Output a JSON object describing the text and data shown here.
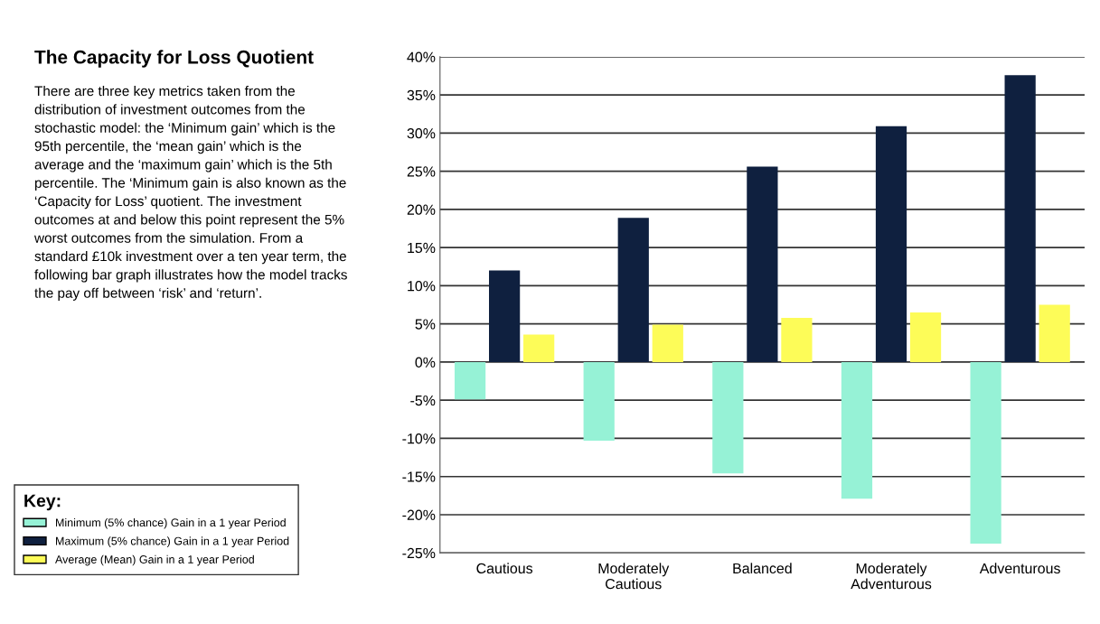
{
  "chart_data": {
    "type": "bar",
    "title": "The Capacity for Loss Quotient",
    "annotations": [
      "There are three key metrics taken from the distribution of investment outcomes from the stochastic model: the ‘Minimum gain’ which is the 95th percentile, the ‘mean gain’ which is the average and the ‘maximum gain’ which is the 5th percentile. The ‘Minimum gain is also known as the ‘Capacity for Loss’ quotient. The investment outcomes at and below this point represent the 5% worst outcomes from the simulation. From a standard £10k investment over a ten year term, the following bar graph illustrates how the model tracks the pay off between ‘risk’ and ‘return’."
    ],
    "categories": [
      "Cautious",
      "Moderately\nCautious",
      "Balanced",
      "Moderately\nAdventurous",
      "Adventurous"
    ],
    "series": [
      {
        "name": "Minimum (5% chance) Gain in a 1 year Period",
        "color": "#96f2d6",
        "values": [
          -4.9,
          -10.3,
          -14.6,
          -17.9,
          -23.8
        ]
      },
      {
        "name": "Maximum (5% chance) Gain in a 1 year Period",
        "color": "#0f203f",
        "values": [
          12.0,
          18.9,
          25.6,
          30.9,
          37.6
        ]
      },
      {
        "name": "Average (Mean) Gain in a 1 year Period",
        "color": "#fdfc58",
        "values": [
          3.6,
          4.9,
          5.8,
          6.5,
          7.5
        ]
      }
    ],
    "ylim": [
      -25,
      40
    ],
    "yticks": [
      {
        "value": -25,
        "label": "-25%"
      },
      {
        "value": -20,
        "label": "-20%"
      },
      {
        "value": -15,
        "label": "-15%"
      },
      {
        "value": -10,
        "label": "-10%"
      },
      {
        "value": -5,
        "label": "-5%"
      },
      {
        "value": 0,
        "label": "0%"
      },
      {
        "value": 5,
        "label": "5%"
      },
      {
        "value": 10,
        "label": "10%"
      },
      {
        "value": 15,
        "label": "15%"
      },
      {
        "value": 20,
        "label": "20%"
      },
      {
        "value": 25,
        "label": "25%"
      },
      {
        "value": 30,
        "label": "30%"
      },
      {
        "value": 35,
        "label": "35%"
      },
      {
        "value": 40,
        "label": "40%"
      }
    ],
    "grid": "y",
    "legend": "bottom left",
    "legend_title": "Key:"
  }
}
